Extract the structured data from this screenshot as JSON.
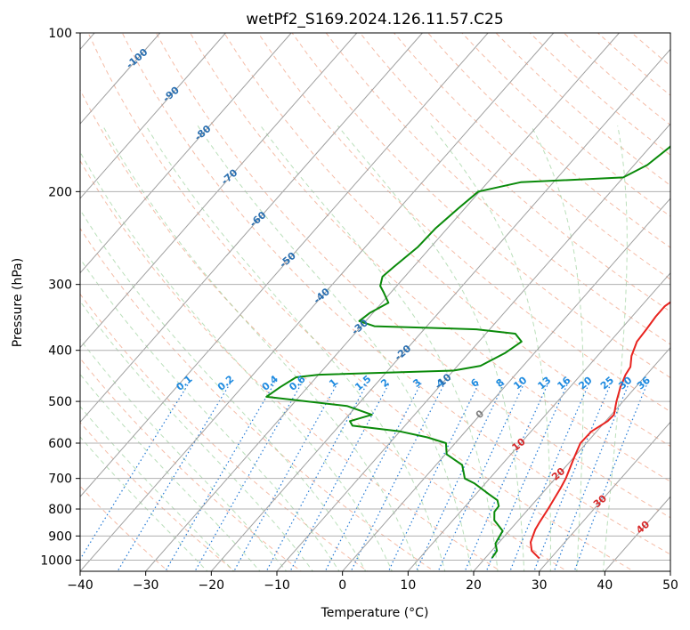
{
  "chart_data": {
    "type": "line",
    "subtype": "skew-T log-P diagram",
    "title": "wetPf2_S169.2024.126.11.57.C25",
    "xlabel": "Temperature (°C)",
    "ylabel": "Pressure (hPa)",
    "xlim": [
      -40,
      50
    ],
    "ylim": [
      1050,
      100
    ],
    "y_scale": "log",
    "grid": true,
    "x_ticks": [
      -40,
      -30,
      -20,
      -10,
      0,
      10,
      20,
      30,
      40,
      50
    ],
    "y_ticks": [
      100,
      200,
      300,
      400,
      500,
      600,
      700,
      800,
      900,
      1000
    ],
    "series": [
      {
        "role": "temperature",
        "color": "#e8231f",
        "points": [
          [
            28.3,
            993
          ],
          [
            26.1,
            960
          ],
          [
            24.8,
            925
          ],
          [
            23.8,
            875
          ],
          [
            23.5,
            850
          ],
          [
            23.0,
            800
          ],
          [
            22.1,
            730
          ],
          [
            21.6,
            700
          ],
          [
            20.1,
            640
          ],
          [
            19.1,
            600
          ],
          [
            19.2,
            570
          ],
          [
            20.3,
            545
          ],
          [
            20.4,
            530
          ],
          [
            19.0,
            500
          ],
          [
            17.7,
            470
          ],
          [
            16.8,
            445
          ],
          [
            16.5,
            430
          ],
          [
            15.2,
            410
          ],
          [
            14.1,
            385
          ],
          [
            13.9,
            365
          ],
          [
            13.6,
            345
          ],
          [
            13.6,
            330
          ],
          [
            14.7,
            310
          ],
          [
            15.9,
            295
          ],
          [
            15.6,
            275
          ],
          [
            14.0,
            255
          ],
          [
            12.9,
            235
          ],
          [
            11.7,
            215
          ],
          [
            9.5,
            190
          ],
          [
            7.4,
            175
          ],
          [
            6.2,
            162
          ],
          [
            5.2,
            150
          ],
          [
            4.6,
            140
          ],
          [
            4.4,
            132
          ],
          [
            5.2,
            122
          ],
          [
            5.8,
            115
          ],
          [
            6.2,
            108
          ],
          [
            6.3,
            100
          ]
        ]
      },
      {
        "role": "dewpoint",
        "color": "#0a8a0a",
        "points": [
          [
            21.0,
            990
          ],
          [
            20.8,
            960
          ],
          [
            19.6,
            930
          ],
          [
            19.0,
            880
          ],
          [
            16.3,
            840
          ],
          [
            15.2,
            810
          ],
          [
            15.1,
            790
          ],
          [
            14.1,
            770
          ],
          [
            12.0,
            750
          ],
          [
            8.3,
            715
          ],
          [
            6.2,
            700
          ],
          [
            5.4,
            685
          ],
          [
            4.0,
            660
          ],
          [
            0.2,
            630
          ],
          [
            -1.4,
            600
          ],
          [
            -5.0,
            585
          ],
          [
            -10.0,
            570
          ],
          [
            -18.0,
            556
          ],
          [
            -19.0,
            545
          ],
          [
            -16.5,
            530
          ],
          [
            -21.5,
            510
          ],
          [
            -35.0,
            490
          ],
          [
            -34.2,
            470
          ],
          [
            -33.1,
            450
          ],
          [
            -30.0,
            445
          ],
          [
            -10.0,
            437
          ],
          [
            -6.5,
            428
          ],
          [
            -4.5,
            405
          ],
          [
            -3.5,
            385
          ],
          [
            -5.5,
            372
          ],
          [
            -12.0,
            365
          ],
          [
            -28.0,
            360
          ],
          [
            -31.0,
            352
          ],
          [
            -30.5,
            340
          ],
          [
            -29.0,
            325
          ],
          [
            -31.2,
            310
          ],
          [
            -32.5,
            302
          ],
          [
            -33.4,
            290
          ],
          [
            -33.0,
            278
          ],
          [
            -32.0,
            255
          ],
          [
            -31.8,
            235
          ],
          [
            -31.0,
            215
          ],
          [
            -30.2,
            200
          ],
          [
            -25.0,
            192
          ],
          [
            -10.0,
            188
          ],
          [
            -8.0,
            178
          ],
          [
            -7.0,
            165
          ],
          [
            -6.8,
            155
          ],
          [
            -5.0,
            145
          ],
          [
            -5.6,
            132
          ],
          [
            -4.5,
            122
          ],
          [
            -3.0,
            112
          ],
          [
            -0.5,
            102
          ],
          [
            0.0,
            100
          ]
        ]
      }
    ],
    "background_lines": {
      "isotherms": "every 10 °C, gray",
      "dry_adiabats": "dashed, light red",
      "moist_adiabats": "dashed, light green",
      "mixing_ratio_lines": "dotted, blue (g/kg)"
    },
    "mixing_ratio_labels": [
      "0.1",
      "0.2",
      "0.4",
      "0.6",
      "1",
      "1.5",
      "2",
      "3",
      "4",
      "6",
      "8",
      "10",
      "13",
      "16",
      "20",
      "25",
      "30",
      "36"
    ],
    "isotherm_labels": [
      {
        "text": "-100",
        "color": "#2a6fb0"
      },
      {
        "text": "-90",
        "color": "#2a6fb0"
      },
      {
        "text": "-80",
        "color": "#2a6fb0"
      },
      {
        "text": "-70",
        "color": "#2a6fb0"
      },
      {
        "text": "-60",
        "color": "#2a6fb0"
      },
      {
        "text": "-50",
        "color": "#2a6fb0"
      },
      {
        "text": "-40",
        "color": "#2a6fb0"
      },
      {
        "text": "-30",
        "color": "#2a6fb0"
      },
      {
        "text": "-20",
        "color": "#2a6fb0"
      },
      {
        "text": "-10",
        "color": "#2a6fb0"
      },
      {
        "text": "0",
        "color": "#808080"
      },
      {
        "text": "10",
        "color": "#d62728"
      },
      {
        "text": "20",
        "color": "#d62728"
      },
      {
        "text": "30",
        "color": "#d62728"
      },
      {
        "text": "40",
        "color": "#d62728"
      }
    ]
  }
}
